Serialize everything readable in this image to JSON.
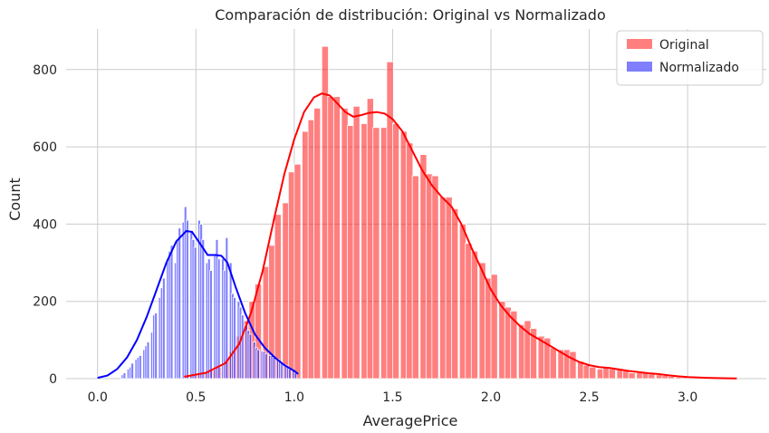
{
  "chart_data": {
    "type": "bar",
    "title": "Comparación de distribución: Original vs Normalizado",
    "xlabel": "AveragePrice",
    "ylabel": "Count",
    "xlim": [
      -0.16,
      3.4
    ],
    "ylim": [
      0,
      905
    ],
    "x_ticks": [
      0.0,
      0.5,
      1.0,
      1.5,
      2.0,
      2.5,
      3.0
    ],
    "x_tick_labels": [
      "0.0",
      "0.5",
      "1.0",
      "1.5",
      "2.0",
      "2.5",
      "3.0"
    ],
    "y_ticks": [
      0,
      200,
      400,
      600,
      800
    ],
    "y_tick_labels": [
      "0",
      "200",
      "400",
      "600",
      "800"
    ],
    "grid": true,
    "legend_position": "top-right",
    "series": [
      {
        "name": "Original",
        "color": "#ff0000",
        "bin_width": 0.0333,
        "bins": [
          [
            0.44,
            5
          ],
          [
            0.47,
            8
          ],
          [
            0.5,
            12
          ],
          [
            0.54,
            18
          ],
          [
            0.57,
            22
          ],
          [
            0.6,
            30
          ],
          [
            0.64,
            50
          ],
          [
            0.67,
            70
          ],
          [
            0.7,
            110
          ],
          [
            0.74,
            150
          ],
          [
            0.77,
            200
          ],
          [
            0.8,
            245
          ],
          [
            0.84,
            290
          ],
          [
            0.87,
            345
          ],
          [
            0.9,
            425
          ],
          [
            0.94,
            455
          ],
          [
            0.97,
            535
          ],
          [
            1.0,
            555
          ],
          [
            1.04,
            640
          ],
          [
            1.07,
            670
          ],
          [
            1.1,
            700
          ],
          [
            1.14,
            860
          ],
          [
            1.17,
            730
          ],
          [
            1.2,
            730
          ],
          [
            1.24,
            700
          ],
          [
            1.27,
            655
          ],
          [
            1.3,
            705
          ],
          [
            1.34,
            660
          ],
          [
            1.37,
            725
          ],
          [
            1.4,
            650
          ],
          [
            1.44,
            650
          ],
          [
            1.47,
            820
          ],
          [
            1.5,
            660
          ],
          [
            1.54,
            640
          ],
          [
            1.57,
            610
          ],
          [
            1.6,
            525
          ],
          [
            1.64,
            580
          ],
          [
            1.67,
            530
          ],
          [
            1.7,
            525
          ],
          [
            1.74,
            470
          ],
          [
            1.77,
            470
          ],
          [
            1.8,
            440
          ],
          [
            1.84,
            400
          ],
          [
            1.87,
            350
          ],
          [
            1.9,
            330
          ],
          [
            1.94,
            300
          ],
          [
            1.97,
            260
          ],
          [
            2.0,
            270
          ],
          [
            2.04,
            200
          ],
          [
            2.07,
            185
          ],
          [
            2.1,
            175
          ],
          [
            2.14,
            140
          ],
          [
            2.17,
            150
          ],
          [
            2.2,
            130
          ],
          [
            2.24,
            110
          ],
          [
            2.27,
            105
          ],
          [
            2.3,
            80
          ],
          [
            2.34,
            75
          ],
          [
            2.37,
            75
          ],
          [
            2.4,
            70
          ],
          [
            2.44,
            45
          ],
          [
            2.47,
            35
          ],
          [
            2.5,
            30
          ],
          [
            2.54,
            25
          ],
          [
            2.57,
            30
          ],
          [
            2.6,
            25
          ],
          [
            2.64,
            25
          ],
          [
            2.67,
            20
          ],
          [
            2.7,
            15
          ],
          [
            2.74,
            15
          ],
          [
            2.77,
            15
          ],
          [
            2.8,
            12
          ],
          [
            2.84,
            10
          ],
          [
            2.87,
            8
          ],
          [
            2.9,
            6
          ],
          [
            2.94,
            4
          ],
          [
            2.97,
            3
          ],
          [
            3.0,
            2
          ],
          [
            3.04,
            2
          ],
          [
            3.07,
            1
          ],
          [
            3.1,
            1
          ],
          [
            3.14,
            1
          ],
          [
            3.17,
            1
          ]
        ],
        "kde": [
          [
            0.44,
            5
          ],
          [
            0.55,
            15
          ],
          [
            0.65,
            40
          ],
          [
            0.72,
            90
          ],
          [
            0.78,
            170
          ],
          [
            0.84,
            280
          ],
          [
            0.9,
            420
          ],
          [
            0.95,
            530
          ],
          [
            1.0,
            620
          ],
          [
            1.05,
            690
          ],
          [
            1.1,
            728
          ],
          [
            1.14,
            738
          ],
          [
            1.18,
            733
          ],
          [
            1.22,
            712
          ],
          [
            1.26,
            690
          ],
          [
            1.3,
            678
          ],
          [
            1.34,
            682
          ],
          [
            1.38,
            688
          ],
          [
            1.42,
            690
          ],
          [
            1.46,
            686
          ],
          [
            1.5,
            672
          ],
          [
            1.55,
            640
          ],
          [
            1.6,
            590
          ],
          [
            1.65,
            540
          ],
          [
            1.7,
            500
          ],
          [
            1.75,
            470
          ],
          [
            1.8,
            445
          ],
          [
            1.85,
            400
          ],
          [
            1.9,
            340
          ],
          [
            1.95,
            285
          ],
          [
            2.0,
            230
          ],
          [
            2.05,
            190
          ],
          [
            2.1,
            160
          ],
          [
            2.15,
            135
          ],
          [
            2.2,
            115
          ],
          [
            2.25,
            100
          ],
          [
            2.3,
            85
          ],
          [
            2.35,
            70
          ],
          [
            2.4,
            55
          ],
          [
            2.45,
            43
          ],
          [
            2.5,
            35
          ],
          [
            2.55,
            30
          ],
          [
            2.6,
            28
          ],
          [
            2.65,
            24
          ],
          [
            2.7,
            20
          ],
          [
            2.75,
            17
          ],
          [
            2.8,
            14
          ],
          [
            2.85,
            12
          ],
          [
            2.9,
            9
          ],
          [
            2.95,
            6
          ],
          [
            3.0,
            4
          ],
          [
            3.1,
            2
          ],
          [
            3.2,
            1
          ],
          [
            3.25,
            0.5
          ]
        ]
      },
      {
        "name": "Normalizado",
        "color": "#0000ff",
        "bin_width": 0.0133,
        "bins": [
          [
            0.12,
            10
          ],
          [
            0.13,
            15
          ],
          [
            0.15,
            25
          ],
          [
            0.16,
            30
          ],
          [
            0.17,
            40
          ],
          [
            0.19,
            50
          ],
          [
            0.2,
            55
          ],
          [
            0.21,
            60
          ],
          [
            0.23,
            75
          ],
          [
            0.24,
            85
          ],
          [
            0.25,
            95
          ],
          [
            0.27,
            120
          ],
          [
            0.28,
            165
          ],
          [
            0.29,
            170
          ],
          [
            0.31,
            210
          ],
          [
            0.32,
            235
          ],
          [
            0.33,
            260
          ],
          [
            0.35,
            310
          ],
          [
            0.36,
            330
          ],
          [
            0.37,
            345
          ],
          [
            0.39,
            300
          ],
          [
            0.4,
            360
          ],
          [
            0.41,
            390
          ],
          [
            0.43,
            405
          ],
          [
            0.44,
            445
          ],
          [
            0.45,
            410
          ],
          [
            0.47,
            380
          ],
          [
            0.48,
            360
          ],
          [
            0.49,
            340
          ],
          [
            0.51,
            410
          ],
          [
            0.52,
            400
          ],
          [
            0.53,
            360
          ],
          [
            0.55,
            300
          ],
          [
            0.56,
            310
          ],
          [
            0.57,
            280
          ],
          [
            0.59,
            320
          ],
          [
            0.6,
            360
          ],
          [
            0.61,
            310
          ],
          [
            0.63,
            310
          ],
          [
            0.64,
            280
          ],
          [
            0.65,
            365
          ],
          [
            0.67,
            300
          ],
          [
            0.68,
            220
          ],
          [
            0.69,
            210
          ],
          [
            0.71,
            200
          ],
          [
            0.72,
            185
          ],
          [
            0.73,
            165
          ],
          [
            0.75,
            140
          ],
          [
            0.76,
            125
          ],
          [
            0.77,
            115
          ],
          [
            0.79,
            95
          ],
          [
            0.8,
            80
          ],
          [
            0.81,
            75
          ],
          [
            0.83,
            72
          ],
          [
            0.84,
            70
          ],
          [
            0.85,
            65
          ],
          [
            0.87,
            60
          ],
          [
            0.88,
            60
          ],
          [
            0.89,
            55
          ],
          [
            0.91,
            50
          ],
          [
            0.92,
            45
          ],
          [
            0.93,
            40
          ],
          [
            0.95,
            35
          ],
          [
            0.96,
            30
          ],
          [
            0.97,
            25
          ],
          [
            0.99,
            20
          ],
          [
            1.0,
            15
          ]
        ],
        "kde": [
          [
            0.0,
            2
          ],
          [
            0.05,
            8
          ],
          [
            0.1,
            25
          ],
          [
            0.15,
            55
          ],
          [
            0.2,
            100
          ],
          [
            0.25,
            160
          ],
          [
            0.3,
            230
          ],
          [
            0.35,
            300
          ],
          [
            0.4,
            355
          ],
          [
            0.45,
            382
          ],
          [
            0.48,
            380
          ],
          [
            0.52,
            350
          ],
          [
            0.56,
            320
          ],
          [
            0.6,
            320
          ],
          [
            0.63,
            318
          ],
          [
            0.66,
            300
          ],
          [
            0.7,
            240
          ],
          [
            0.75,
            170
          ],
          [
            0.8,
            115
          ],
          [
            0.85,
            80
          ],
          [
            0.9,
            55
          ],
          [
            0.95,
            35
          ],
          [
            1.0,
            20
          ],
          [
            1.02,
            12
          ]
        ]
      }
    ]
  }
}
